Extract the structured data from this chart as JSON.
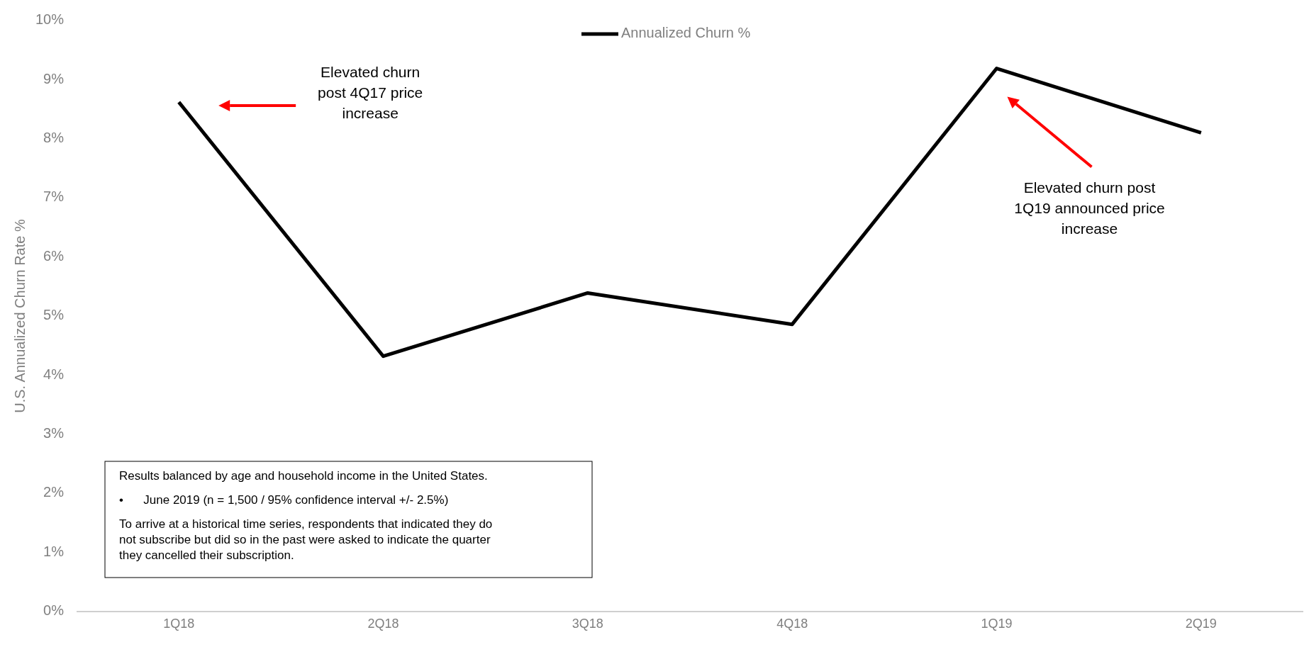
{
  "chart_data": {
    "type": "line",
    "ylabel": "U.S. Annualized Churn Rate %",
    "categories": [
      "1Q18",
      "2Q18",
      "3Q18",
      "4Q18",
      "1Q19",
      "2Q19"
    ],
    "series": [
      {
        "name": "Annualized Churn %",
        "color": "#000000",
        "values": [
          8.62,
          4.32,
          5.39,
          4.86,
          9.19,
          8.1
        ]
      }
    ],
    "ylim": [
      0,
      10
    ],
    "yticks": [
      {
        "value": 0,
        "label": "0%"
      },
      {
        "value": 1,
        "label": "1%"
      },
      {
        "value": 2,
        "label": "2%"
      },
      {
        "value": 3,
        "label": "3%"
      },
      {
        "value": 4,
        "label": "4%"
      },
      {
        "value": 5,
        "label": "5%"
      },
      {
        "value": 6,
        "label": "6%"
      },
      {
        "value": 7,
        "label": "7%"
      },
      {
        "value": 8,
        "label": "8%"
      },
      {
        "value": 9,
        "label": "9%"
      },
      {
        "value": 10,
        "label": "10%"
      }
    ],
    "grid": false,
    "legend": "top",
    "marker": "none",
    "line_style": "solid",
    "annotations": [
      "Elevated churn post 4Q17 price increase",
      "Elevated churn post 1Q19 announced price increase",
      "Results balanced by age and household income in the United States.",
      "•      June 2019 (n = 1,500 / 95% confidence interval +/- 2.5%)",
      "To arrive at a historical time series, respondents that indicated they do not subscribe but did so in the past were asked to indicate the quarter they cancelled their subscription."
    ]
  }
}
